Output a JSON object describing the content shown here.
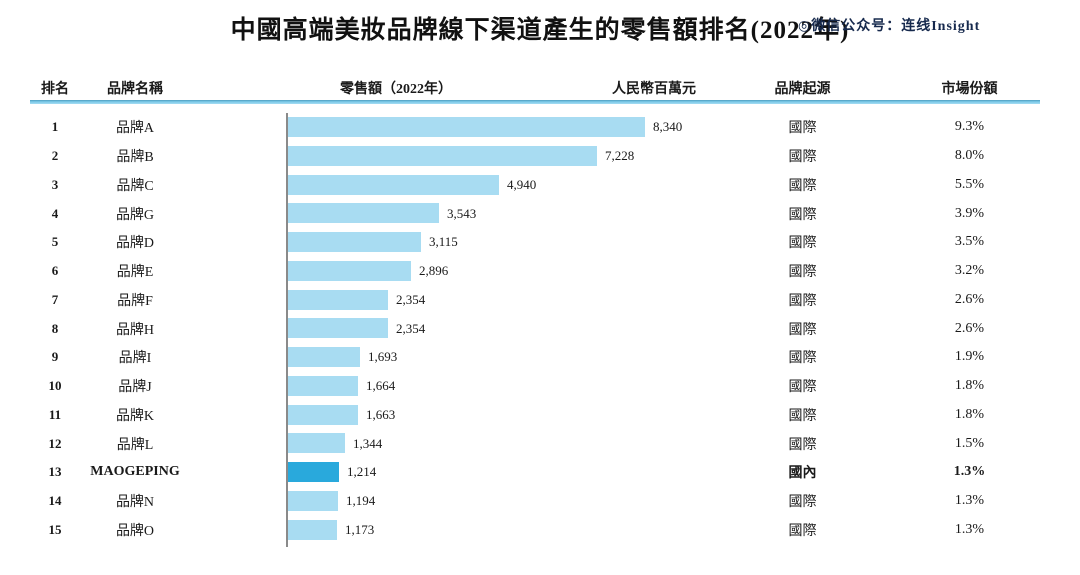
{
  "title": "中國高端美妝品牌線下渠道產生的零售額排名(2022年)",
  "watermark": "◎微信公众号：连线Insight",
  "columns": {
    "rank": "排名",
    "brand": "品牌名稱",
    "retail": "零售額（2022年）",
    "unit": "人民幣百萬元",
    "origin": "品牌起源",
    "share": "市場份額"
  },
  "colors": {
    "bar": "#a8dcf2",
    "bar_highlight": "#29a9dc",
    "header_line": "#7cc9e8",
    "axis_line": "#8a8a8a",
    "watermark": "#16294d"
  },
  "chart_data": {
    "type": "bar",
    "orientation": "horizontal",
    "title": "中國高端美妝品牌線下渠道產生的零售額排名(2022年)",
    "xlabel": "零售額（2022年），人民幣百萬元",
    "xlim": [
      0,
      8340
    ],
    "legend": "none",
    "grid": false,
    "max_value": 8340,
    "rows": [
      {
        "rank": "1",
        "brand": "品牌A",
        "value": 8340,
        "value_label": "8,340",
        "origin": "國際",
        "share": "9.3%",
        "highlight": false
      },
      {
        "rank": "2",
        "brand": "品牌B",
        "value": 7228,
        "value_label": "7,228",
        "origin": "國際",
        "share": "8.0%",
        "highlight": false
      },
      {
        "rank": "3",
        "brand": "品牌C",
        "value": 4940,
        "value_label": "4,940",
        "origin": "國際",
        "share": "5.5%",
        "highlight": false
      },
      {
        "rank": "4",
        "brand": "品牌G",
        "value": 3543,
        "value_label": "3,543",
        "origin": "國際",
        "share": "3.9%",
        "highlight": false
      },
      {
        "rank": "5",
        "brand": "品牌D",
        "value": 3115,
        "value_label": "3,115",
        "origin": "國際",
        "share": "3.5%",
        "highlight": false
      },
      {
        "rank": "6",
        "brand": "品牌E",
        "value": 2896,
        "value_label": "2,896",
        "origin": "國際",
        "share": "3.2%",
        "highlight": false
      },
      {
        "rank": "7",
        "brand": "品牌F",
        "value": 2354,
        "value_label": "2,354",
        "origin": "國際",
        "share": "2.6%",
        "highlight": false
      },
      {
        "rank": "8",
        "brand": "品牌H",
        "value": 2354,
        "value_label": "2,354",
        "origin": "國際",
        "share": "2.6%",
        "highlight": false
      },
      {
        "rank": "9",
        "brand": "品牌I",
        "value": 1693,
        "value_label": "1,693",
        "origin": "國際",
        "share": "1.9%",
        "highlight": false
      },
      {
        "rank": "10",
        "brand": "品牌J",
        "value": 1664,
        "value_label": "1,664",
        "origin": "國際",
        "share": "1.8%",
        "highlight": false
      },
      {
        "rank": "11",
        "brand": "品牌K",
        "value": 1663,
        "value_label": "1,663",
        "origin": "國際",
        "share": "1.8%",
        "highlight": false
      },
      {
        "rank": "12",
        "brand": "品牌L",
        "value": 1344,
        "value_label": "1,344",
        "origin": "國際",
        "share": "1.5%",
        "highlight": false
      },
      {
        "rank": "13",
        "brand": "MAOGEPING",
        "value": 1214,
        "value_label": "1,214",
        "origin": "國內",
        "share": "1.3%",
        "highlight": true
      },
      {
        "rank": "14",
        "brand": "品牌N",
        "value": 1194,
        "value_label": "1,194",
        "origin": "國際",
        "share": "1.3%",
        "highlight": false
      },
      {
        "rank": "15",
        "brand": "品牌O",
        "value": 1173,
        "value_label": "1,173",
        "origin": "國際",
        "share": "1.3%",
        "highlight": false
      }
    ]
  }
}
